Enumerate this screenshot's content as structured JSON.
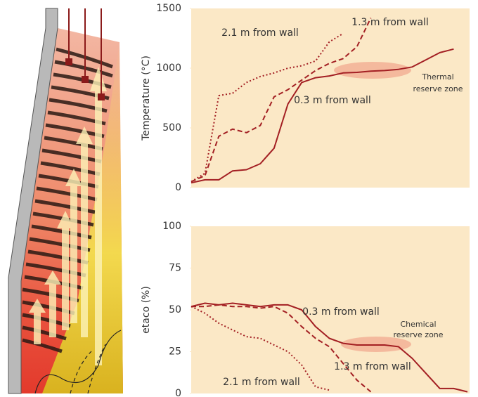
{
  "chart_data": [
    {
      "type": "line",
      "ylabel": "Temperature (°C)",
      "ylim": [
        0,
        1500
      ],
      "yticks": [
        0,
        500,
        1000,
        1500
      ],
      "categories": [
        null,
        null,
        null,
        null,
        null,
        null,
        null,
        null,
        null,
        null,
        null,
        null,
        null,
        null,
        null,
        null,
        null,
        null,
        null,
        null,
        null
      ],
      "zone_label": [
        "Thermal",
        "reserve zone"
      ],
      "series": [
        {
          "name": "0.3 m from wall",
          "color": "#a31f23",
          "dash": "solid",
          "values": [
            40,
            65,
            65,
            140,
            150,
            200,
            330,
            700,
            880,
            920,
            935,
            960,
            965,
            975,
            980,
            990,
            1010,
            1070,
            1130,
            1160,
            null
          ]
        },
        {
          "name": "1.3 m from wall",
          "color": "#a31f23",
          "dash": "dashed",
          "values": [
            50,
            100,
            430,
            490,
            460,
            520,
            760,
            820,
            900,
            980,
            1040,
            1080,
            1180,
            1420,
            null,
            null,
            null,
            null,
            null,
            null,
            null
          ]
        },
        {
          "name": "2.1 m from wall",
          "color": "#a31f23",
          "dash": "dotted",
          "values": [
            50,
            120,
            770,
            790,
            880,
            930,
            960,
            1000,
            1020,
            1060,
            1220,
            1290,
            null,
            null,
            null,
            null,
            null,
            null,
            null,
            null,
            null
          ]
        }
      ]
    },
    {
      "type": "line",
      "ylabel": "etaco (%)",
      "ylim": [
        0,
        100
      ],
      "yticks": [
        0,
        25,
        50,
        75,
        100
      ],
      "categories": [
        null,
        null,
        null,
        null,
        null,
        null,
        null,
        null,
        null,
        null,
        null,
        null,
        null,
        null,
        null,
        null,
        null,
        null,
        null,
        null,
        null
      ],
      "zone_label": [
        "Chemical",
        "reserve zone"
      ],
      "series": [
        {
          "name": "0.3 m from wall",
          "color": "#a31f23",
          "dash": "solid",
          "values": [
            52,
            54,
            53,
            54,
            53,
            52,
            53,
            53,
            50,
            40,
            33,
            30,
            29,
            29,
            29,
            28,
            21,
            12,
            3,
            3,
            1
          ]
        },
        {
          "name": "1.3 m from wall",
          "color": "#a31f23",
          "dash": "dashed",
          "values": [
            52,
            52,
            53,
            52,
            52,
            51,
            52,
            48,
            40,
            33,
            28,
            18,
            8,
            1,
            null,
            null,
            null,
            null,
            null,
            null,
            null
          ]
        },
        {
          "name": "2.1 m from wall",
          "color": "#a31f23",
          "dash": "dotted",
          "values": [
            52,
            48,
            42,
            38,
            34,
            33,
            29,
            25,
            17,
            4,
            2,
            null,
            null,
            null,
            null,
            null,
            null,
            null,
            null,
            null,
            null
          ]
        }
      ]
    }
  ]
}
